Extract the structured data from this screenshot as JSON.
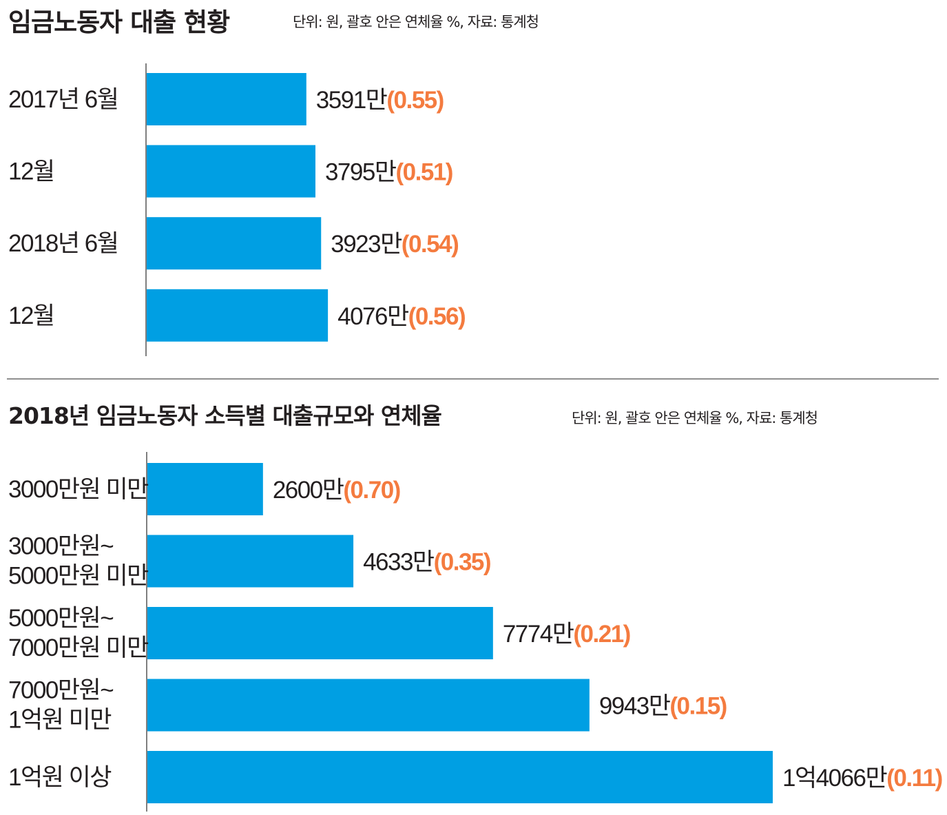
{
  "colors": {
    "bar": "#009fe3",
    "rate": "#f47b3f",
    "axis": "#555555",
    "text": "#231f20"
  },
  "chart_data": [
    {
      "type": "bar",
      "orientation": "horizontal",
      "title": "임금노동자 대출 현황",
      "note": "단위: 원, 괄호 안은 연체율 %, 자료: 통계청",
      "categories": [
        "2017년 6월",
        "12월",
        "2018년 6월",
        "12월"
      ],
      "values": [
        3591,
        3795,
        3923,
        4076
      ],
      "value_labels": [
        "3591만",
        "3795만",
        "3923만",
        "4076만"
      ],
      "rates": [
        0.55,
        0.51,
        0.54,
        0.56
      ],
      "rate_labels": [
        "(0.55)",
        "(0.51)",
        "(0.54)",
        "(0.56)"
      ]
    },
    {
      "type": "bar",
      "orientation": "horizontal",
      "title": "2018년 임금노동자 소득별 대출규모와 연체율",
      "note": "단위: 원, 괄호 안은 연체율 %, 자료: 통계청",
      "categories": [
        [
          "3000만원 미만"
        ],
        [
          "3000만원~",
          "5000만원 미만"
        ],
        [
          "5000만원~",
          "7000만원 미만"
        ],
        [
          "7000만원~",
          "1억원 미만"
        ],
        [
          "1억원 이상"
        ]
      ],
      "values": [
        2600,
        4633,
        7774,
        9943,
        14066
      ],
      "value_labels": [
        "2600만",
        "4633만",
        "7774만",
        "9943만",
        "1억4066만"
      ],
      "rates": [
        0.7,
        0.35,
        0.21,
        0.15,
        0.11
      ],
      "rate_labels": [
        "(0.70)",
        "(0.35)",
        "(0.21)",
        "(0.15)",
        "(0.11)"
      ]
    }
  ]
}
